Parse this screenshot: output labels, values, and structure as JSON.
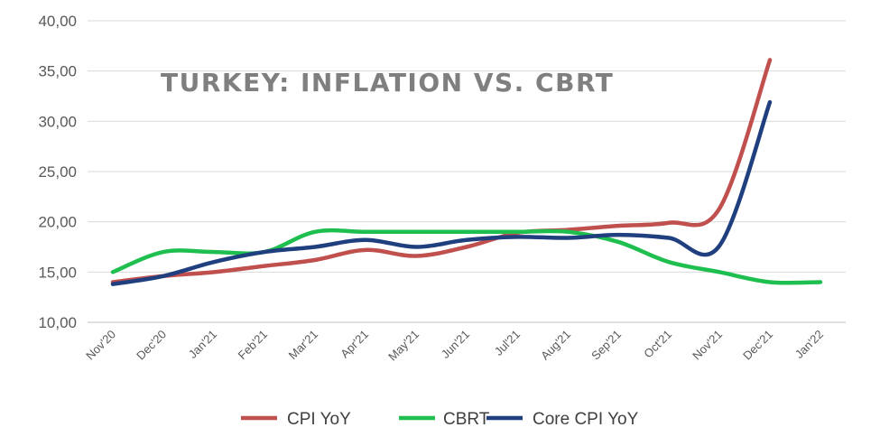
{
  "chart_data": {
    "type": "line",
    "title": "TURKEY: INFLATION VS. CBRT",
    "xlabel": "",
    "ylabel": "",
    "categories": [
      "Nov'20",
      "Dec'20",
      "Jan'21",
      "Feb'21",
      "Mar'21",
      "Apr'21",
      "May'21",
      "Jun'21",
      "Jul'21",
      "Aug'21",
      "Sep'21",
      "Oct'21",
      "Nov'21",
      "Dec'21",
      "Jan'22"
    ],
    "yticks": [
      "10,00",
      "15,00",
      "20,00",
      "25,00",
      "30,00",
      "35,00",
      "40,00"
    ],
    "ylim": [
      10,
      40
    ],
    "grid": true,
    "legend": "bottom",
    "series": [
      {
        "name": "CPI YoY",
        "color": "#c0504d",
        "values": [
          14.0,
          14.6,
          15.0,
          15.6,
          16.2,
          17.2,
          16.6,
          17.5,
          18.9,
          19.2,
          19.6,
          19.9,
          21.3,
          36.1,
          null
        ]
      },
      {
        "name": "CBRT",
        "color": "#1fbf4f",
        "values": [
          15.0,
          17.0,
          17.0,
          17.0,
          19.0,
          19.0,
          19.0,
          19.0,
          19.0,
          19.0,
          18.0,
          16.0,
          15.0,
          14.0,
          14.0
        ]
      },
      {
        "name": "Core CPI YoY",
        "color": "#1f3f7f",
        "values": [
          13.8,
          14.6,
          16.0,
          17.0,
          17.5,
          18.2,
          17.5,
          18.2,
          18.5,
          18.4,
          18.7,
          18.4,
          17.6,
          31.9,
          null
        ]
      }
    ]
  }
}
